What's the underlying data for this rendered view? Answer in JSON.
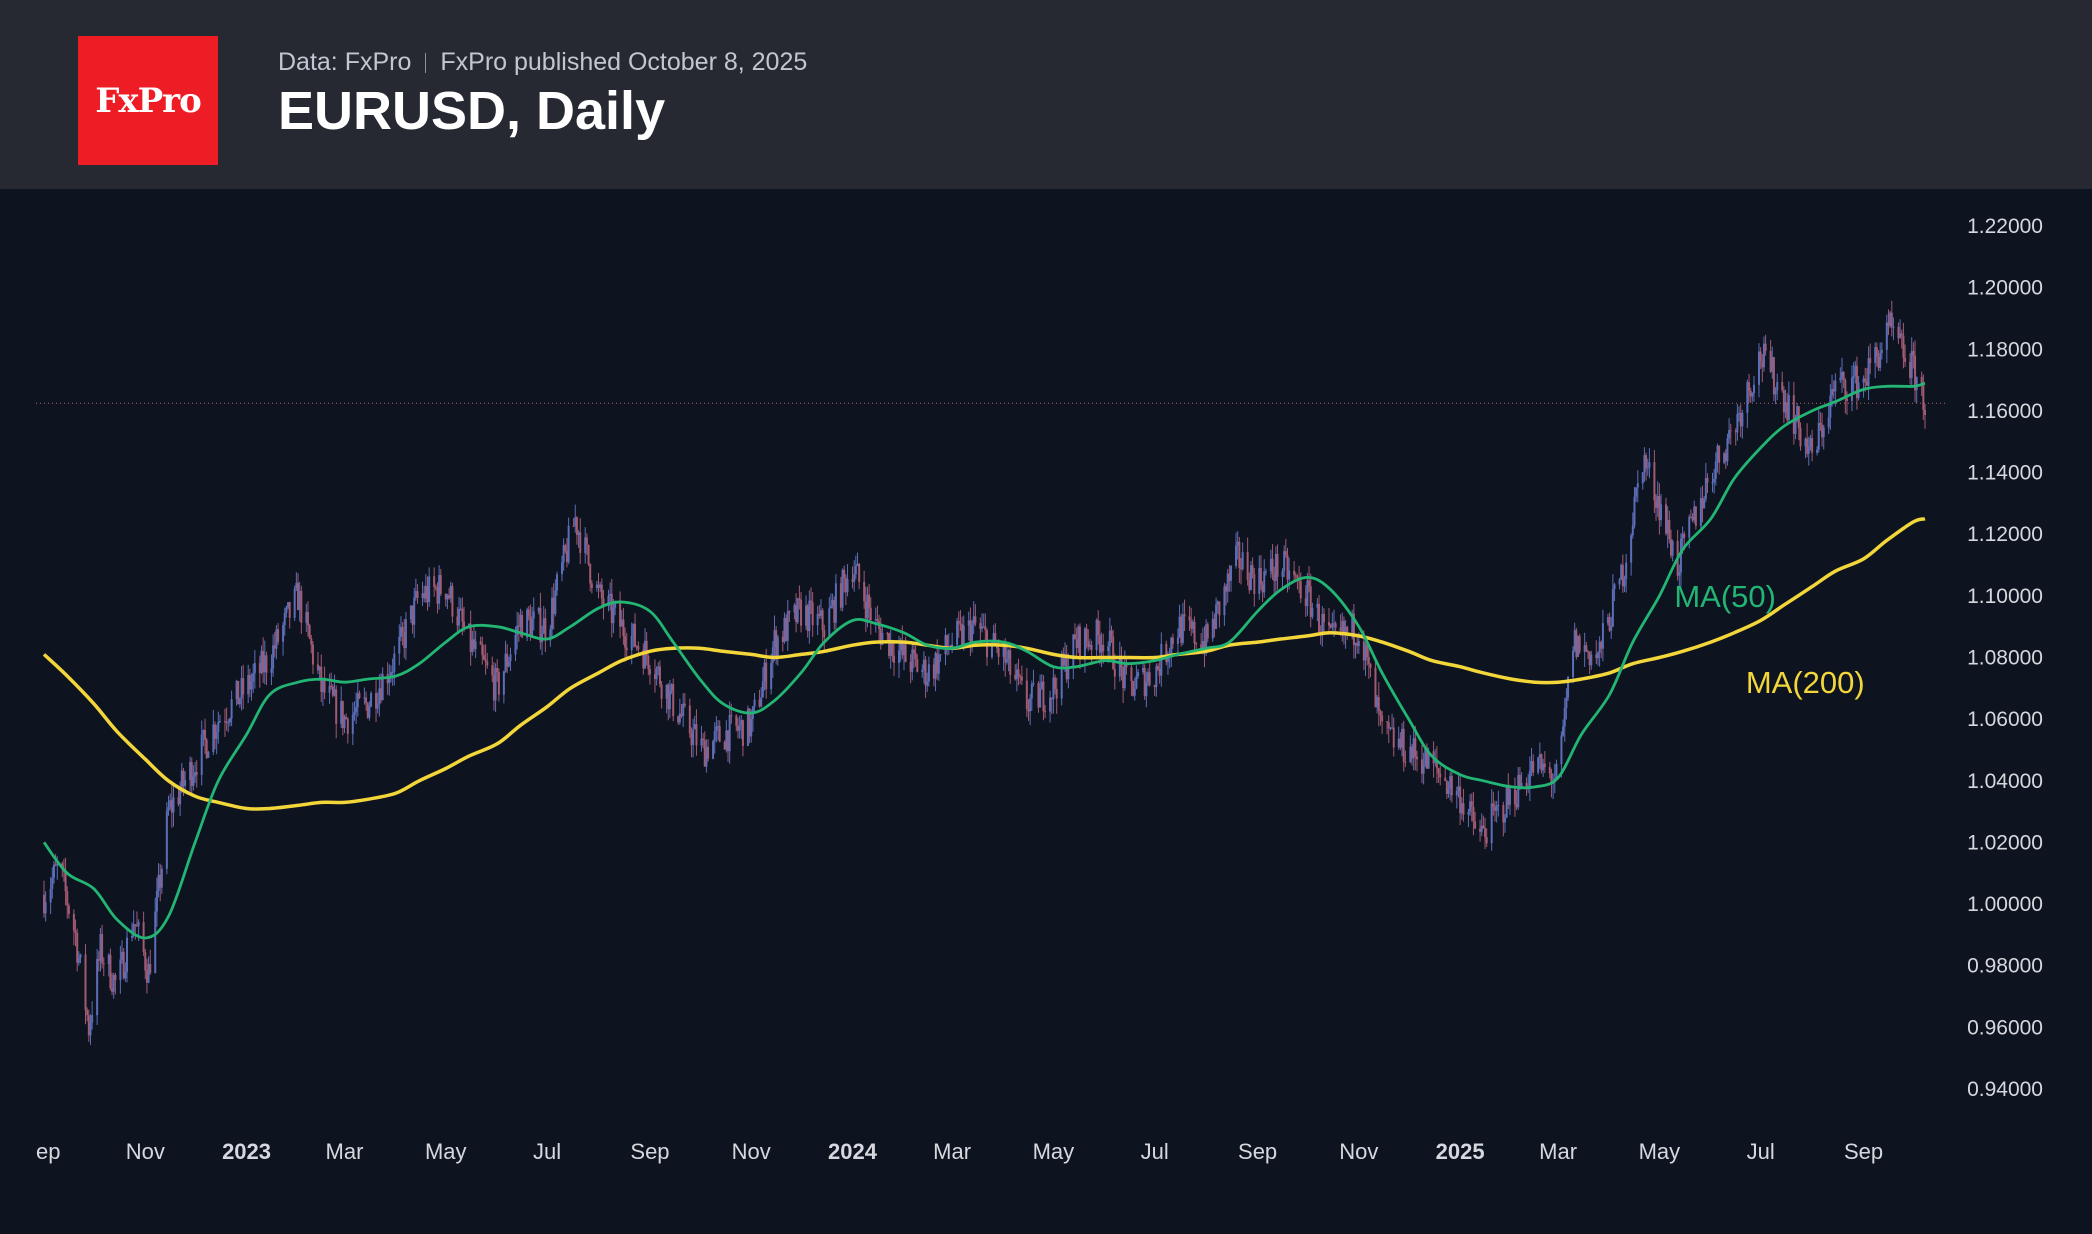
{
  "header": {
    "logo_text": "FxPro",
    "source_text": "Data: FxPro",
    "published_text": "FxPro published October 8, 2025",
    "title": "EURUSD, Daily"
  },
  "colors": {
    "background": "#0e1320",
    "header_bg": "#262932",
    "logo_bg": "#ee1c25",
    "ma50": "#22b573",
    "ma200": "#f2d63a",
    "candle_up": "#5b6fb8",
    "candle_down": "#a15b72",
    "price_line": "#b06a6a"
  },
  "chart_data": {
    "type": "line",
    "title": "EURUSD, Daily",
    "ylim": [
      0.93,
      1.225
    ],
    "y_ticks": [
      "1.22000",
      "1.20000",
      "1.18000",
      "1.16000",
      "1.14000",
      "1.12000",
      "1.10000",
      "1.08000",
      "1.06000",
      "1.04000",
      "1.02000",
      "1.00000",
      "0.98000",
      "0.96000",
      "0.94000"
    ],
    "x_range": [
      "2022-09-01",
      "2025-10-08"
    ],
    "x_ticks": [
      {
        "label": "ep",
        "date": "2022-09-01",
        "bold": false
      },
      {
        "label": "Nov",
        "date": "2022-11-01",
        "bold": false
      },
      {
        "label": "2023",
        "date": "2023-01-01",
        "bold": true
      },
      {
        "label": "Mar",
        "date": "2023-03-01",
        "bold": false
      },
      {
        "label": "May",
        "date": "2023-05-01",
        "bold": false
      },
      {
        "label": "Jul",
        "date": "2023-07-01",
        "bold": false
      },
      {
        "label": "Sep",
        "date": "2023-09-01",
        "bold": false
      },
      {
        "label": "Nov",
        "date": "2023-11-01",
        "bold": false
      },
      {
        "label": "2024",
        "date": "2024-01-01",
        "bold": true
      },
      {
        "label": "Mar",
        "date": "2024-03-01",
        "bold": false
      },
      {
        "label": "May",
        "date": "2024-05-01",
        "bold": false
      },
      {
        "label": "Jul",
        "date": "2024-07-01",
        "bold": false
      },
      {
        "label": "Sep",
        "date": "2024-09-01",
        "bold": false
      },
      {
        "label": "Nov",
        "date": "2024-11-01",
        "bold": false
      },
      {
        "label": "2025",
        "date": "2025-01-01",
        "bold": true
      },
      {
        "label": "Mar",
        "date": "2025-03-01",
        "bold": false
      },
      {
        "label": "May",
        "date": "2025-05-01",
        "bold": false
      },
      {
        "label": "Jul",
        "date": "2025-07-01",
        "bold": false
      },
      {
        "label": "Sep",
        "date": "2025-09-01",
        "bold": false
      }
    ],
    "current_price": 1.1625,
    "series": [
      {
        "name": "MA(50)",
        "label": "MA(50)",
        "label_date": "2025-05-01",
        "label_value": 1.1
      },
      {
        "name": "MA(200)",
        "label": "MA(200)",
        "label_date": "2025-06-01",
        "label_value": 1.072
      }
    ],
    "ma50": [
      [
        "2022-09-01",
        1.02
      ],
      [
        "2022-09-15",
        1.01
      ],
      [
        "2022-10-01",
        1.005
      ],
      [
        "2022-10-15",
        0.995
      ],
      [
        "2022-11-01",
        0.989
      ],
      [
        "2022-11-15",
        0.996
      ],
      [
        "2022-12-01",
        1.02
      ],
      [
        "2022-12-15",
        1.04
      ],
      [
        "2023-01-01",
        1.055
      ],
      [
        "2023-01-15",
        1.068
      ],
      [
        "2023-02-01",
        1.072
      ],
      [
        "2023-02-15",
        1.073
      ],
      [
        "2023-03-01",
        1.072
      ],
      [
        "2023-03-15",
        1.073
      ],
      [
        "2023-04-01",
        1.074
      ],
      [
        "2023-04-15",
        1.078
      ],
      [
        "2023-05-01",
        1.085
      ],
      [
        "2023-05-15",
        1.09
      ],
      [
        "2023-06-01",
        1.09
      ],
      [
        "2023-06-15",
        1.088
      ],
      [
        "2023-07-01",
        1.086
      ],
      [
        "2023-07-15",
        1.09
      ],
      [
        "2023-08-01",
        1.096
      ],
      [
        "2023-08-15",
        1.098
      ],
      [
        "2023-09-01",
        1.095
      ],
      [
        "2023-09-15",
        1.085
      ],
      [
        "2023-10-01",
        1.073
      ],
      [
        "2023-10-15",
        1.065
      ],
      [
        "2023-11-01",
        1.062
      ],
      [
        "2023-11-15",
        1.066
      ],
      [
        "2023-12-01",
        1.075
      ],
      [
        "2023-12-15",
        1.085
      ],
      [
        "2024-01-01",
        1.092
      ],
      [
        "2024-01-15",
        1.091
      ],
      [
        "2024-02-01",
        1.088
      ],
      [
        "2024-02-15",
        1.084
      ],
      [
        "2024-03-01",
        1.083
      ],
      [
        "2024-03-15",
        1.085
      ],
      [
        "2024-04-01",
        1.085
      ],
      [
        "2024-04-15",
        1.082
      ],
      [
        "2024-05-01",
        1.077
      ],
      [
        "2024-05-15",
        1.077
      ],
      [
        "2024-06-01",
        1.079
      ],
      [
        "2024-06-15",
        1.078
      ],
      [
        "2024-07-01",
        1.079
      ],
      [
        "2024-07-15",
        1.081
      ],
      [
        "2024-08-01",
        1.083
      ],
      [
        "2024-08-15",
        1.085
      ],
      [
        "2024-09-01",
        1.095
      ],
      [
        "2024-09-15",
        1.102
      ],
      [
        "2024-10-01",
        1.106
      ],
      [
        "2024-10-15",
        1.102
      ],
      [
        "2024-11-01",
        1.09
      ],
      [
        "2024-11-15",
        1.075
      ],
      [
        "2024-12-01",
        1.06
      ],
      [
        "2024-12-15",
        1.048
      ],
      [
        "2025-01-01",
        1.042
      ],
      [
        "2025-01-15",
        1.04
      ],
      [
        "2025-02-01",
        1.038
      ],
      [
        "2025-02-15",
        1.038
      ],
      [
        "2025-03-01",
        1.041
      ],
      [
        "2025-03-15",
        1.055
      ],
      [
        "2025-04-01",
        1.068
      ],
      [
        "2025-04-15",
        1.085
      ],
      [
        "2025-05-01",
        1.1
      ],
      [
        "2025-05-15",
        1.115
      ],
      [
        "2025-06-01",
        1.125
      ],
      [
        "2025-06-15",
        1.138
      ],
      [
        "2025-07-01",
        1.148
      ],
      [
        "2025-07-15",
        1.155
      ],
      [
        "2025-08-01",
        1.16
      ],
      [
        "2025-08-15",
        1.163
      ],
      [
        "2025-09-01",
        1.167
      ],
      [
        "2025-09-15",
        1.168
      ],
      [
        "2025-10-01",
        1.168
      ],
      [
        "2025-10-08",
        1.169
      ]
    ],
    "ma200": [
      [
        "2022-09-01",
        1.081
      ],
      [
        "2022-09-15",
        1.074
      ],
      [
        "2022-10-01",
        1.065
      ],
      [
        "2022-10-15",
        1.056
      ],
      [
        "2022-11-01",
        1.047
      ],
      [
        "2022-11-15",
        1.04
      ],
      [
        "2022-12-01",
        1.035
      ],
      [
        "2022-12-15",
        1.033
      ],
      [
        "2023-01-01",
        1.031
      ],
      [
        "2023-01-15",
        1.031
      ],
      [
        "2023-02-01",
        1.032
      ],
      [
        "2023-02-15",
        1.033
      ],
      [
        "2023-03-01",
        1.033
      ],
      [
        "2023-03-15",
        1.034
      ],
      [
        "2023-04-01",
        1.036
      ],
      [
        "2023-04-15",
        1.04
      ],
      [
        "2023-05-01",
        1.044
      ],
      [
        "2023-05-15",
        1.048
      ],
      [
        "2023-06-01",
        1.052
      ],
      [
        "2023-06-15",
        1.058
      ],
      [
        "2023-07-01",
        1.064
      ],
      [
        "2023-07-15",
        1.07
      ],
      [
        "2023-08-01",
        1.075
      ],
      [
        "2023-08-15",
        1.079
      ],
      [
        "2023-09-01",
        1.082
      ],
      [
        "2023-09-15",
        1.083
      ],
      [
        "2023-10-01",
        1.083
      ],
      [
        "2023-10-15",
        1.082
      ],
      [
        "2023-11-01",
        1.081
      ],
      [
        "2023-11-15",
        1.08
      ],
      [
        "2023-12-01",
        1.081
      ],
      [
        "2023-12-15",
        1.082
      ],
      [
        "2024-01-01",
        1.084
      ],
      [
        "2024-01-15",
        1.085
      ],
      [
        "2024-02-01",
        1.085
      ],
      [
        "2024-02-15",
        1.084
      ],
      [
        "2024-03-01",
        1.083
      ],
      [
        "2024-03-15",
        1.084
      ],
      [
        "2024-04-01",
        1.084
      ],
      [
        "2024-04-15",
        1.083
      ],
      [
        "2024-05-01",
        1.081
      ],
      [
        "2024-05-15",
        1.08
      ],
      [
        "2024-06-01",
        1.08
      ],
      [
        "2024-06-15",
        1.08
      ],
      [
        "2024-07-01",
        1.08
      ],
      [
        "2024-07-15",
        1.081
      ],
      [
        "2024-08-01",
        1.082
      ],
      [
        "2024-08-15",
        1.084
      ],
      [
        "2024-09-01",
        1.085
      ],
      [
        "2024-09-15",
        1.086
      ],
      [
        "2024-10-01",
        1.087
      ],
      [
        "2024-10-15",
        1.088
      ],
      [
        "2024-11-01",
        1.087
      ],
      [
        "2024-11-15",
        1.085
      ],
      [
        "2024-12-01",
        1.082
      ],
      [
        "2024-12-15",
        1.079
      ],
      [
        "2025-01-01",
        1.077
      ],
      [
        "2025-01-15",
        1.075
      ],
      [
        "2025-02-01",
        1.073
      ],
      [
        "2025-02-15",
        1.072
      ],
      [
        "2025-03-01",
        1.072
      ],
      [
        "2025-03-15",
        1.073
      ],
      [
        "2025-04-01",
        1.075
      ],
      [
        "2025-04-15",
        1.078
      ],
      [
        "2025-05-01",
        1.08
      ],
      [
        "2025-05-15",
        1.082
      ],
      [
        "2025-06-01",
        1.085
      ],
      [
        "2025-06-15",
        1.088
      ],
      [
        "2025-07-01",
        1.092
      ],
      [
        "2025-07-15",
        1.097
      ],
      [
        "2025-08-01",
        1.103
      ],
      [
        "2025-08-15",
        1.108
      ],
      [
        "2025-09-01",
        1.112
      ],
      [
        "2025-09-15",
        1.118
      ],
      [
        "2025-10-01",
        1.124
      ],
      [
        "2025-10-08",
        1.125
      ]
    ],
    "price_approx": [
      [
        "2022-09-01",
        1.003
      ],
      [
        "2022-09-10",
        1.012
      ],
      [
        "2022-09-20",
        0.99
      ],
      [
        "2022-09-28",
        0.96
      ],
      [
        "2022-10-05",
        0.985
      ],
      [
        "2022-10-15",
        0.973
      ],
      [
        "2022-10-25",
        0.995
      ],
      [
        "2022-11-03",
        0.978
      ],
      [
        "2022-11-15",
        1.03
      ],
      [
        "2022-11-25",
        1.04
      ],
      [
        "2022-12-05",
        1.05
      ],
      [
        "2022-12-15",
        1.06
      ],
      [
        "2023-01-01",
        1.07
      ],
      [
        "2023-01-15",
        1.08
      ],
      [
        "2023-02-01",
        1.1
      ],
      [
        "2023-02-15",
        1.07
      ],
      [
        "2023-03-01",
        1.06
      ],
      [
        "2023-03-15",
        1.065
      ],
      [
        "2023-04-01",
        1.08
      ],
      [
        "2023-04-15",
        1.1
      ],
      [
        "2023-05-01",
        1.103
      ],
      [
        "2023-05-15",
        1.085
      ],
      [
        "2023-06-01",
        1.07
      ],
      [
        "2023-06-15",
        1.092
      ],
      [
        "2023-07-01",
        1.09
      ],
      [
        "2023-07-18",
        1.125
      ],
      [
        "2023-08-01",
        1.1
      ],
      [
        "2023-08-15",
        1.09
      ],
      [
        "2023-09-01",
        1.08
      ],
      [
        "2023-09-15",
        1.065
      ],
      [
        "2023-10-03",
        1.05
      ],
      [
        "2023-10-15",
        1.055
      ],
      [
        "2023-11-01",
        1.058
      ],
      [
        "2023-11-15",
        1.085
      ],
      [
        "2023-12-01",
        1.095
      ],
      [
        "2023-12-15",
        1.09
      ],
      [
        "2024-01-01",
        1.11
      ],
      [
        "2024-01-15",
        1.09
      ],
      [
        "2024-02-01",
        1.08
      ],
      [
        "2024-02-15",
        1.075
      ],
      [
        "2024-03-01",
        1.085
      ],
      [
        "2024-03-15",
        1.09
      ],
      [
        "2024-04-01",
        1.08
      ],
      [
        "2024-04-15",
        1.065
      ],
      [
        "2024-05-01",
        1.07
      ],
      [
        "2024-05-15",
        1.085
      ],
      [
        "2024-06-01",
        1.087
      ],
      [
        "2024-06-15",
        1.07
      ],
      [
        "2024-07-01",
        1.075
      ],
      [
        "2024-07-15",
        1.09
      ],
      [
        "2024-08-01",
        1.085
      ],
      [
        "2024-08-20",
        1.112
      ],
      [
        "2024-09-01",
        1.105
      ],
      [
        "2024-09-15",
        1.11
      ],
      [
        "2024-10-01",
        1.1
      ],
      [
        "2024-10-15",
        1.085
      ],
      [
        "2024-11-01",
        1.09
      ],
      [
        "2024-11-15",
        1.055
      ],
      [
        "2024-12-01",
        1.05
      ],
      [
        "2024-12-15",
        1.045
      ],
      [
        "2025-01-01",
        1.035
      ],
      [
        "2025-01-13",
        1.022
      ],
      [
        "2025-02-01",
        1.035
      ],
      [
        "2025-02-15",
        1.045
      ],
      [
        "2025-03-01",
        1.04
      ],
      [
        "2025-03-10",
        1.085
      ],
      [
        "2025-03-25",
        1.08
      ],
      [
        "2025-04-10",
        1.11
      ],
      [
        "2025-04-21",
        1.145
      ],
      [
        "2025-05-01",
        1.13
      ],
      [
        "2025-05-12",
        1.11
      ],
      [
        "2025-06-01",
        1.14
      ],
      [
        "2025-06-15",
        1.155
      ],
      [
        "2025-07-01",
        1.178
      ],
      [
        "2025-07-15",
        1.165
      ],
      [
        "2025-08-01",
        1.145
      ],
      [
        "2025-08-15",
        1.168
      ],
      [
        "2025-09-01",
        1.17
      ],
      [
        "2025-09-17",
        1.186
      ],
      [
        "2025-10-01",
        1.173
      ],
      [
        "2025-10-08",
        1.163
      ]
    ]
  }
}
